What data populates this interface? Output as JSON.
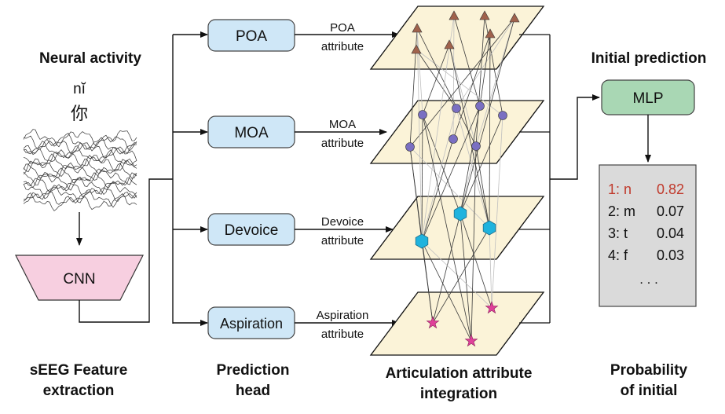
{
  "left": {
    "title": "Neural activity",
    "pinyin": "nĭ",
    "hanzi": "你",
    "encoder_label": "CNN",
    "caption_line1": "sEEG Feature",
    "caption_line2": "extraction"
  },
  "heads": {
    "items": [
      {
        "label": "POA",
        "attr_line1": "POA",
        "attr_line2": "attribute"
      },
      {
        "label": "MOA",
        "attr_line1": "MOA",
        "attr_line2": "attribute"
      },
      {
        "label": "Devoice",
        "attr_line1": "Devoice",
        "attr_line2": "attribute"
      },
      {
        "label": "Aspiration",
        "attr_line1": "Aspiration",
        "attr_line2": "attribute"
      }
    ],
    "caption_line1": "Prediction",
    "caption_line2": "head"
  },
  "integration": {
    "caption_line1": "Articulation attribute",
    "caption_line2": "integration",
    "layer_fill": "#fbf3d8",
    "marker_colors": {
      "poa": "#a0624c",
      "moa": "#7a6fc2",
      "devoice": "#1fb3de",
      "aspiration": "#e0409a"
    }
  },
  "output": {
    "title": "Initial prediction",
    "mlp_label": "MLP",
    "predictions": [
      {
        "rank": "1:",
        "phone": "n",
        "prob": "0.82",
        "highlight": true
      },
      {
        "rank": "2:",
        "phone": "m",
        "prob": "0.07",
        "highlight": false
      },
      {
        "rank": "3:",
        "phone": "t",
        "prob": "0.04",
        "highlight": false
      },
      {
        "rank": "4:",
        "phone": "f",
        "prob": "0.03",
        "highlight": false
      }
    ],
    "ellipsis": ". . .",
    "caption_line1": "Probability",
    "caption_line2": "of initial"
  },
  "colors": {
    "head_fill": "#cfe7f7",
    "head_stroke": "#444444",
    "cnn_fill": "#f7cfe0",
    "mlp_fill": "#a9d7b4",
    "prob_box_fill": "#dadada",
    "highlight_text": "#c0392b"
  }
}
